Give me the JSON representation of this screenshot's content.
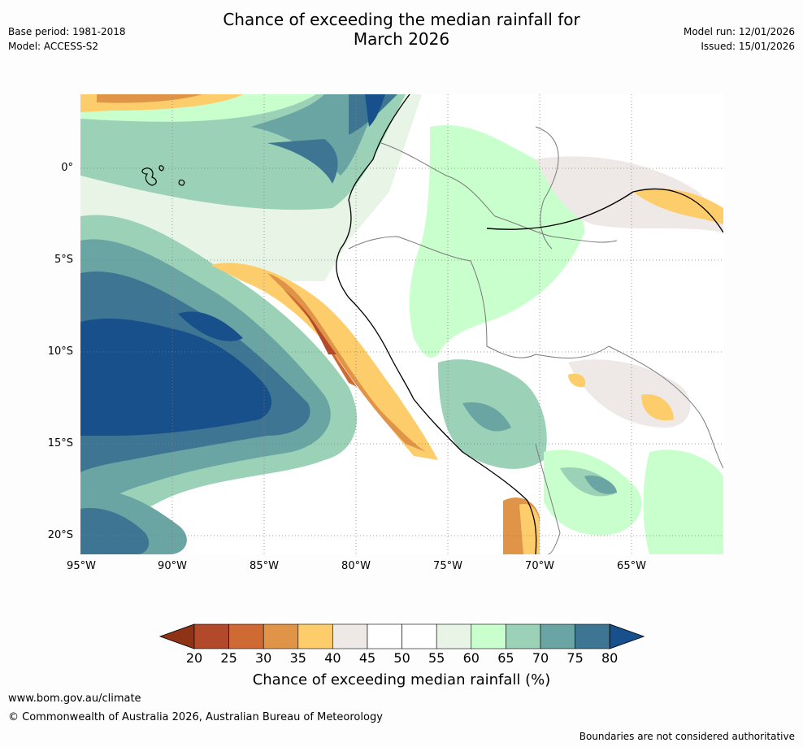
{
  "header": {
    "title_line1": "Chance of exceeding the median rainfall for",
    "title_line2": "March 2026",
    "base_period": "Base period: 1981-2018",
    "model": "Model: ACCESS-S2",
    "model_run": "Model run: 12/01/2026",
    "issued": "Issued: 15/01/2026"
  },
  "axes": {
    "lat_labels": [
      "0°",
      "5°S",
      "10°S",
      "15°S",
      "20°S"
    ],
    "lon_labels": [
      "95°W",
      "90°W",
      "85°W",
      "80°W",
      "75°W",
      "70°W",
      "65°W"
    ]
  },
  "colorbar": {
    "ticks": [
      "20",
      "25",
      "30",
      "35",
      "40",
      "45",
      "50",
      "55",
      "60",
      "65",
      "70",
      "75",
      "80"
    ],
    "colors": [
      "#8f3317",
      "#b2492a",
      "#cf6a34",
      "#e09447",
      "#fecd6b",
      "#eee9e6",
      "#ffffff",
      "#ffffff",
      "#e8f4e6",
      "#c8ffcd",
      "#9bd2b7",
      "#6aa4a3",
      "#3e7593",
      "#17508a"
    ],
    "title": "Chance of exceeding median rainfall (%)"
  },
  "footer": {
    "website": "www.bom.gov.au/climate",
    "copyright": "© Commonwealth of Australia 2026, Australian Bureau of Meteorology",
    "disclaimer": "Boundaries are not considered authoritative"
  }
}
